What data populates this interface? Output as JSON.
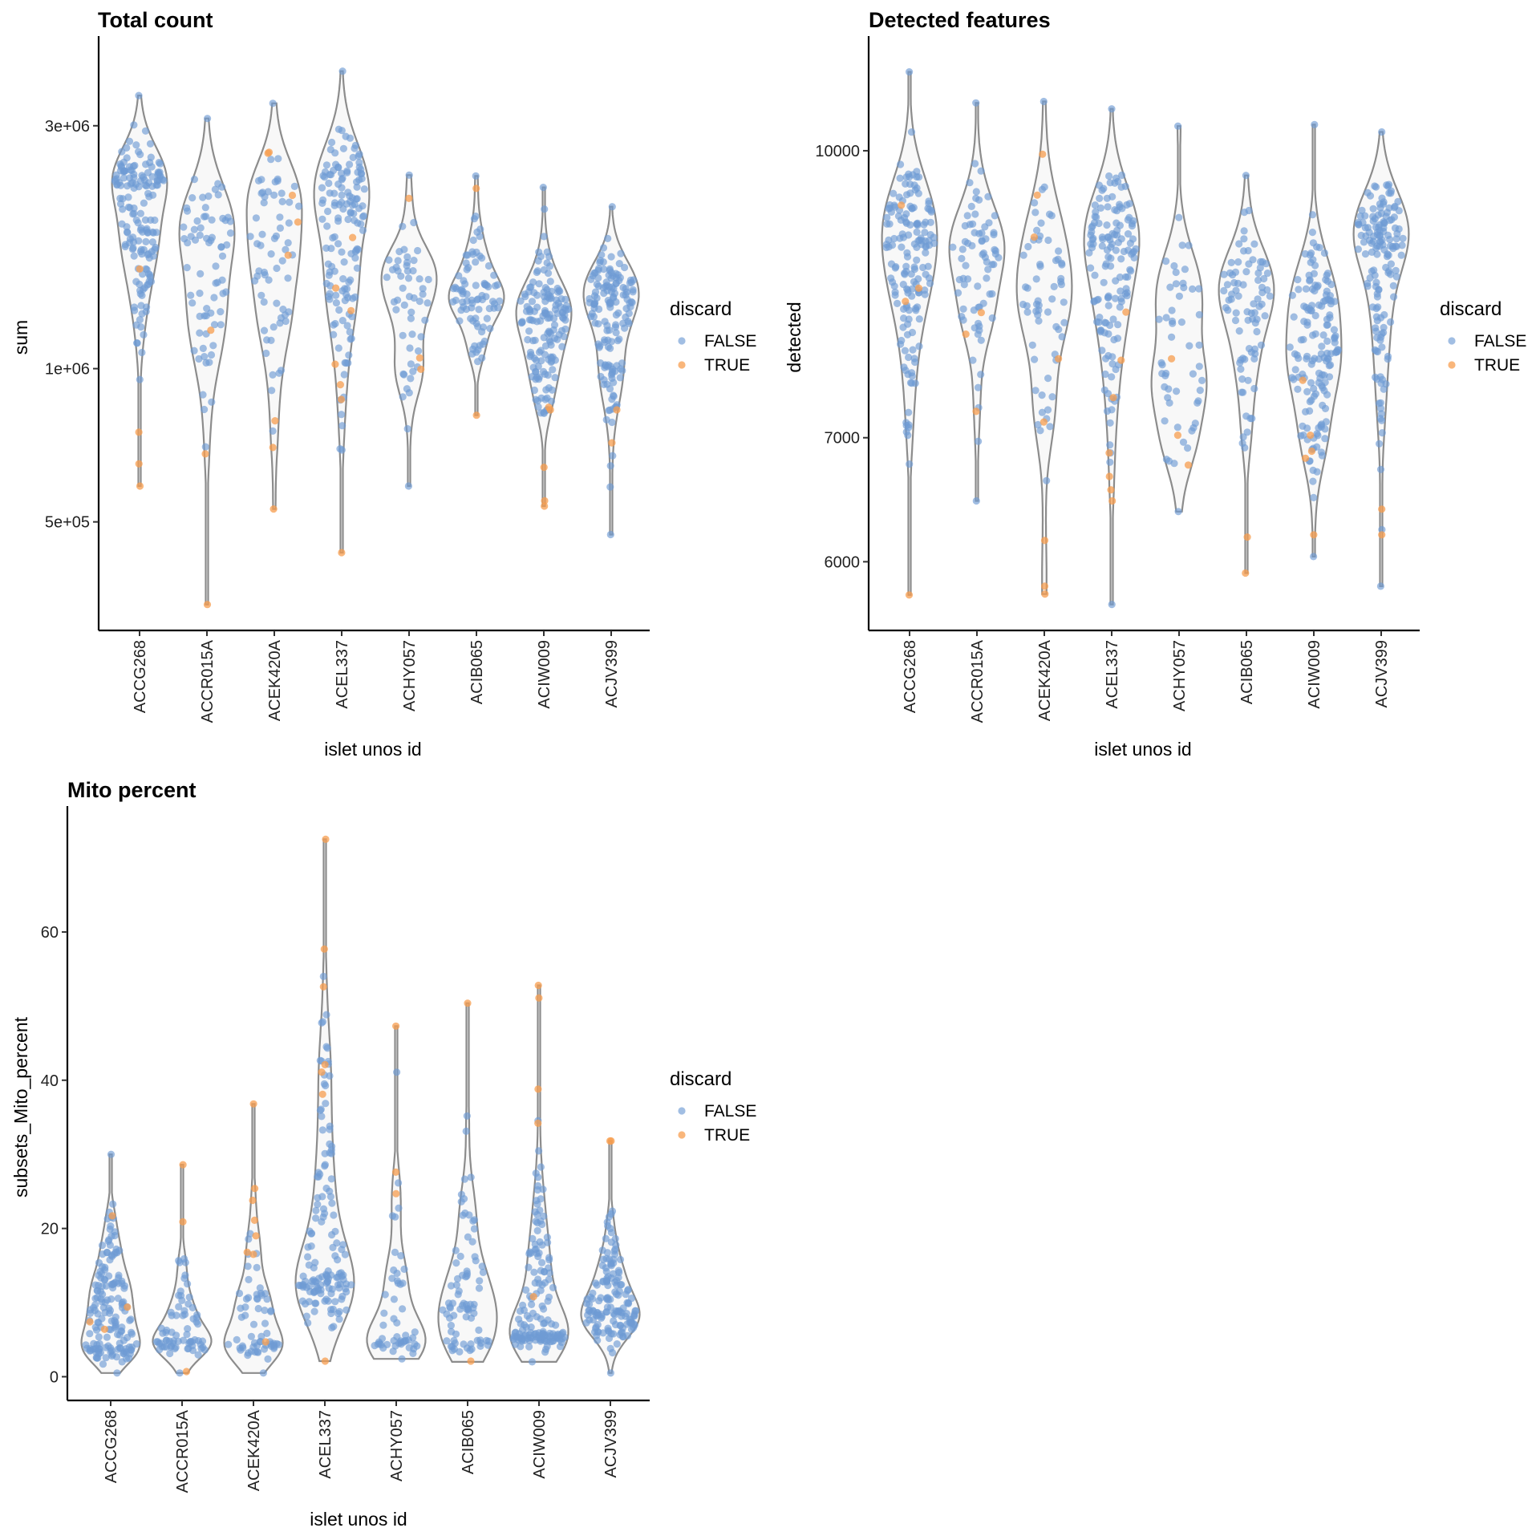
{
  "chart_data": [
    {
      "type": "violin",
      "title": "Total count",
      "xlabel": "islet unos id",
      "ylabel": "sum",
      "yscale": "log10",
      "ylim": [
        306000,
        4340000
      ],
      "yticks": [
        {
          "value": 500000,
          "label": "5e+05"
        },
        {
          "value": 1000000,
          "label": "1e+06"
        },
        {
          "value": 3000000,
          "label": "3e+06"
        }
      ],
      "grid": false,
      "legend": {
        "title": "discard",
        "placement": "right",
        "entries": [
          {
            "label": "FALSE",
            "color": "#6f9bd4"
          },
          {
            "label": "TRUE",
            "color": "#f79d4f"
          }
        ]
      },
      "categories": [
        "ACCG268",
        "ACCR015A",
        "ACEK420A",
        "ACEL337",
        "ACHY057",
        "ACIB065",
        "ACIW009",
        "ACJV399"
      ],
      "groups": [
        {
          "n_false": 160,
          "min": 588000,
          "max": 3440000,
          "modes": [
            2270000
          ],
          "discard_true": [
            1570000,
            750000,
            650000,
            588000
          ]
        },
        {
          "n_false": 70,
          "min": 344000,
          "max": 3100000,
          "modes": [
            1730000
          ],
          "discard_true": [
            1190000,
            680000,
            344000
          ]
        },
        {
          "n_false": 60,
          "min": 530000,
          "max": 3320000,
          "modes": [
            1730000
          ],
          "discard_true": [
            2660000,
            2650000,
            2190000,
            1940000,
            1670000,
            790000,
            700000,
            530000
          ]
        },
        {
          "n_false": 140,
          "min": 435000,
          "max": 3840000,
          "modes": [
            1940000
          ],
          "discard_true": [
            1810000,
            1440000,
            1300000,
            1020000,
            930000,
            870000,
            435000
          ]
        },
        {
          "n_false": 50,
          "min": 588000,
          "max": 2400000,
          "modes": [
            1390000
          ],
          "discard_true": [
            2160000,
            1050000,
            997000
          ]
        },
        {
          "n_false": 80,
          "min": 810000,
          "max": 2390000,
          "modes": [
            1390000
          ],
          "discard_true": [
            2260000,
            810000
          ]
        },
        {
          "n_false": 150,
          "min": 537000,
          "max": 2270000,
          "modes": [
            1240000
          ],
          "discard_true": [
            840000,
            830000,
            640000,
            550000,
            537000
          ]
        },
        {
          "n_false": 150,
          "min": 472000,
          "max": 2080000,
          "modes": [
            1330000
          ],
          "discard_true": [
            830000,
            715000
          ]
        }
      ]
    },
    {
      "type": "violin",
      "title": "Detected features",
      "xlabel": "islet unos id",
      "ylabel": "detected",
      "yscale": "log10",
      "ylim": [
        5509,
        11417
      ],
      "yticks": [
        {
          "value": 6000,
          "label": "6000"
        },
        {
          "value": 7000,
          "label": "7000"
        },
        {
          "value": 10000,
          "label": "10000"
        }
      ],
      "grid": false,
      "legend": {
        "title": "discard",
        "placement": "right",
        "entries": [
          {
            "label": "FALSE",
            "color": "#6f9bd4"
          },
          {
            "label": "TRUE",
            "color": "#f79d4f"
          }
        ]
      },
      "categories": [
        "ACCG268",
        "ACCR015A",
        "ACEK420A",
        "ACEL337",
        "ACHY057",
        "ACIB065",
        "ACIW009",
        "ACJV399"
      ],
      "groups": [
        {
          "n_false": 160,
          "min": 5757,
          "max": 11030,
          "modes": [
            8872
          ],
          "discard_true": [
            9345,
            8430,
            8293,
            5757
          ]
        },
        {
          "n_false": 70,
          "min": 6471,
          "max": 10612,
          "modes": [
            8711
          ],
          "discard_true": [
            8178,
            7962,
            7233
          ]
        },
        {
          "n_false": 60,
          "min": 5764,
          "max": 10632,
          "modes": [
            8475
          ],
          "discard_true": [
            9957,
            9463,
            8982,
            7722,
            7138,
            6161,
            5820,
            5764
          ]
        },
        {
          "n_false": 140,
          "min": 5690,
          "max": 10535,
          "modes": [
            8764
          ],
          "discard_true": [
            8183,
            7708,
            7358,
            6869,
            6671,
            6561,
            6471
          ]
        },
        {
          "n_false": 50,
          "min": 6386,
          "max": 10311,
          "modes": [
            8600,
            7400
          ],
          "discard_true": [
            7722,
            7022,
            6766
          ]
        },
        {
          "n_false": 80,
          "min": 5916,
          "max": 9698,
          "modes": [
            8347
          ],
          "discard_true": [
            6187,
            5916
          ]
        },
        {
          "n_false": 150,
          "min": 6039,
          "max": 10330,
          "modes": [
            7947
          ],
          "discard_true": [
            7518,
            7022,
            6884,
            6824,
            6204
          ]
        },
        {
          "n_false": 150,
          "min": 5820,
          "max": 10236,
          "modes": [
            8872
          ],
          "discard_true": [
            6405,
            6204
          ]
        }
      ]
    },
    {
      "type": "violin",
      "title": "Mito percent",
      "xlabel": "islet unos id",
      "ylabel": "subsets_Mito_percent",
      "yscale": "linear",
      "ylim": [
        -3.2,
        75.9
      ],
      "yticks": [
        {
          "value": 0,
          "label": "0"
        },
        {
          "value": 20,
          "label": "20"
        },
        {
          "value": 40,
          "label": "40"
        },
        {
          "value": 60,
          "label": "60"
        }
      ],
      "grid": false,
      "legend": {
        "title": "discard",
        "placement": "right",
        "entries": [
          {
            "label": "FALSE",
            "color": "#6f9bd4"
          },
          {
            "label": "TRUE",
            "color": "#f79d4f"
          }
        ]
      },
      "categories": [
        "ACCG268",
        "ACCR015A",
        "ACEK420A",
        "ACEL337",
        "ACHY057",
        "ACIB065",
        "ACIW009",
        "ACJV399"
      ],
      "groups": [
        {
          "n_false": 160,
          "min": 0.5,
          "max": 30,
          "modes": [
            4,
            4,
            14
          ],
          "discard_true": [
            21.7,
            9.4,
            7.4,
            6.4
          ]
        },
        {
          "n_false": 70,
          "min": 0.5,
          "max": 28.6,
          "modes": [
            5
          ],
          "discard_true": [
            28.6,
            20.9,
            0.7
          ]
        },
        {
          "n_false": 60,
          "min": 0.5,
          "max": 36.8,
          "modes": [
            5
          ],
          "discard_true": [
            36.8,
            25.4,
            23.8,
            21.1,
            19.0,
            16.8,
            16.5,
            4.7
          ]
        },
        {
          "n_false": 140,
          "min": 2.1,
          "max": 72.5,
          "modes": [
            14
          ],
          "discard_true": [
            72.5,
            57.7,
            52.6,
            42.1,
            41.1,
            38.1,
            2.1
          ]
        },
        {
          "n_false": 50,
          "min": 2.4,
          "max": 47.3,
          "modes": [
            5
          ],
          "discard_true": [
            47.3,
            27.6,
            24.7
          ]
        },
        {
          "n_false": 80,
          "min": 2.0,
          "max": 50.4,
          "modes": [
            10,
            5
          ],
          "discard_true": [
            50.4,
            2.1
          ]
        },
        {
          "n_false": 150,
          "min": 2.0,
          "max": 52.8,
          "modes": [
            6
          ],
          "discard_true": [
            52.8,
            51.1,
            38.8,
            34.2,
            10.8
          ]
        },
        {
          "n_false": 150,
          "min": 0.5,
          "max": 31.8,
          "modes": [
            9
          ],
          "discard_true": [
            31.8,
            31.8
          ]
        }
      ]
    }
  ]
}
